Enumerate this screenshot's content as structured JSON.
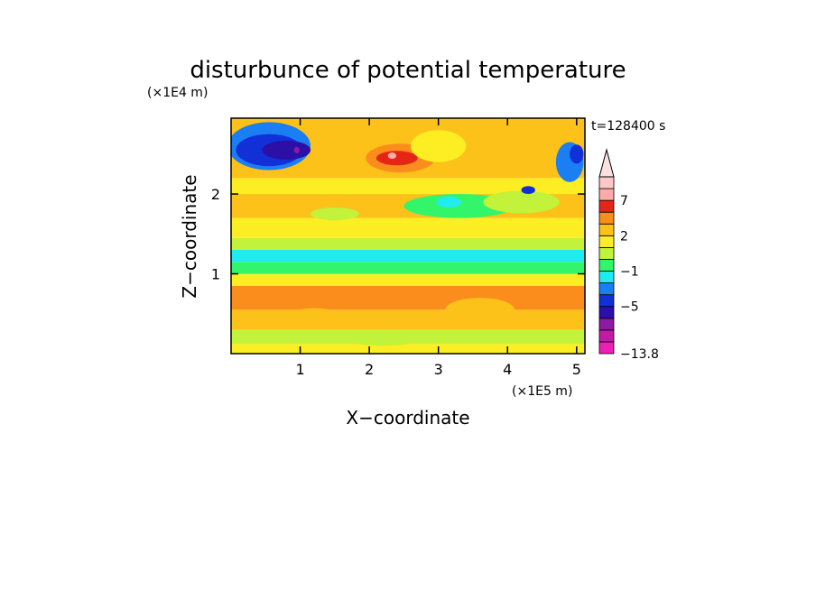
{
  "chart_data": {
    "type": "heatmap",
    "title": "disturbunce of potential temperature",
    "time_label": "t=128400 s",
    "xlabel": "X−coordinate",
    "ylabel": "Z−coordinate",
    "x_unit": "(×1E5 m)",
    "y_unit": "(×1E4 m)",
    "x_range": [
      0,
      5.12
    ],
    "y_range": [
      0,
      2.95
    ],
    "x_ticks": [
      {
        "value": 1,
        "label": "1"
      },
      {
        "value": 2,
        "label": "2"
      },
      {
        "value": 3,
        "label": "3"
      },
      {
        "value": 4,
        "label": "4"
      },
      {
        "value": 5,
        "label": "5"
      }
    ],
    "y_ticks": [
      {
        "value": 1,
        "label": "1"
      },
      {
        "value": 2,
        "label": "2"
      }
    ],
    "colorbar": {
      "min": -13.8,
      "levels": [
        {
          "upper": -11,
          "color": "#ee1fb8"
        },
        {
          "upper": -9,
          "color": "#c41aa5"
        },
        {
          "upper": -7,
          "color": "#8e19a4"
        },
        {
          "upper": -5,
          "color": "#2c0fa6"
        },
        {
          "upper": -3,
          "color": "#1130d8"
        },
        {
          "upper": -2,
          "color": "#1b7ef2"
        },
        {
          "upper": -1,
          "color": "#20ecf0"
        },
        {
          "upper": 0,
          "color": "#33f56a"
        },
        {
          "upper": 1,
          "color": "#c3f23a"
        },
        {
          "upper": 2,
          "color": "#fcee22"
        },
        {
          "upper": 3,
          "color": "#fcc21a"
        },
        {
          "upper": 5,
          "color": "#fb8d1c"
        },
        {
          "upper": 7,
          "color": "#e62615"
        },
        {
          "upper": 9,
          "color": "#fcaaaa"
        },
        {
          "upper": 11,
          "color": "#fbc7c7"
        }
      ],
      "over_color": "#fbe0e0",
      "labels": [
        "7",
        "2",
        "−1",
        "−5",
        "−13.8"
      ]
    },
    "field_layers": [
      {
        "band": [
          0.0,
          0.12
        ],
        "value": 1.5
      },
      {
        "band": [
          0.12,
          0.3
        ],
        "value": 0.5
      },
      {
        "band": [
          0.3,
          0.55
        ],
        "value": 2.5
      },
      {
        "band": [
          0.55,
          0.85
        ],
        "value": 3.5
      },
      {
        "band": [
          0.85,
          1.0
        ],
        "value": 1.5
      },
      {
        "band": [
          1.0,
          1.15
        ],
        "value": -0.5
      },
      {
        "band": [
          1.15,
          1.3
        ],
        "value": -1.5
      },
      {
        "band": [
          1.3,
          1.45
        ],
        "value": 0.5
      },
      {
        "band": [
          1.45,
          1.7
        ],
        "value": 1.5
      },
      {
        "band": [
          1.7,
          2.0
        ],
        "value": 2.5
      },
      {
        "band": [
          2.0,
          2.2
        ],
        "value": 1.5
      },
      {
        "band": [
          2.2,
          2.95
        ],
        "value": 2.5
      }
    ],
    "field_features": [
      {
        "x": 0.55,
        "z": 2.6,
        "rx": 0.6,
        "rz": 0.3,
        "value": -2.5
      },
      {
        "x": 0.55,
        "z": 2.55,
        "rx": 0.48,
        "rz": 0.2,
        "value": -4
      },
      {
        "x": 0.8,
        "z": 2.55,
        "rx": 0.35,
        "rz": 0.12,
        "value": -6
      },
      {
        "x": 0.95,
        "z": 2.55,
        "rx": 0.04,
        "rz": 0.04,
        "value": -8
      },
      {
        "x": 2.45,
        "z": 2.45,
        "rx": 0.5,
        "rz": 0.18,
        "value": 4
      },
      {
        "x": 2.4,
        "z": 2.45,
        "rx": 0.3,
        "rz": 0.09,
        "value": 6
      },
      {
        "x": 2.33,
        "z": 2.48,
        "rx": 0.06,
        "rz": 0.04,
        "value": 8
      },
      {
        "x": 3.3,
        "z": 1.85,
        "rx": 0.8,
        "rz": 0.15,
        "value": -0.5
      },
      {
        "x": 3.15,
        "z": 1.9,
        "rx": 0.18,
        "rz": 0.07,
        "value": -1.5
      },
      {
        "x": 1.5,
        "z": 1.75,
        "rx": 0.35,
        "rz": 0.08,
        "value": 0.5
      },
      {
        "x": 4.2,
        "z": 1.9,
        "rx": 0.55,
        "rz": 0.14,
        "value": 0.5
      },
      {
        "x": 4.9,
        "z": 2.4,
        "rx": 0.2,
        "rz": 0.25,
        "value": -2.5
      },
      {
        "x": 5.0,
        "z": 2.5,
        "rx": 0.1,
        "rz": 0.12,
        "value": -4
      },
      {
        "x": 4.3,
        "z": 2.05,
        "rx": 0.1,
        "rz": 0.05,
        "value": -4
      },
      {
        "x": 3.0,
        "z": 2.6,
        "rx": 0.4,
        "rz": 0.2,
        "value": 1.5
      },
      {
        "x": 3.6,
        "z": 0.55,
        "rx": 0.5,
        "rz": 0.15,
        "value": 2.5
      },
      {
        "x": 1.2,
        "z": 0.45,
        "rx": 0.4,
        "rz": 0.12,
        "value": 2.5
      },
      {
        "x": 2.2,
        "z": 0.2,
        "rx": 0.6,
        "rz": 0.1,
        "value": 0.5
      }
    ]
  }
}
